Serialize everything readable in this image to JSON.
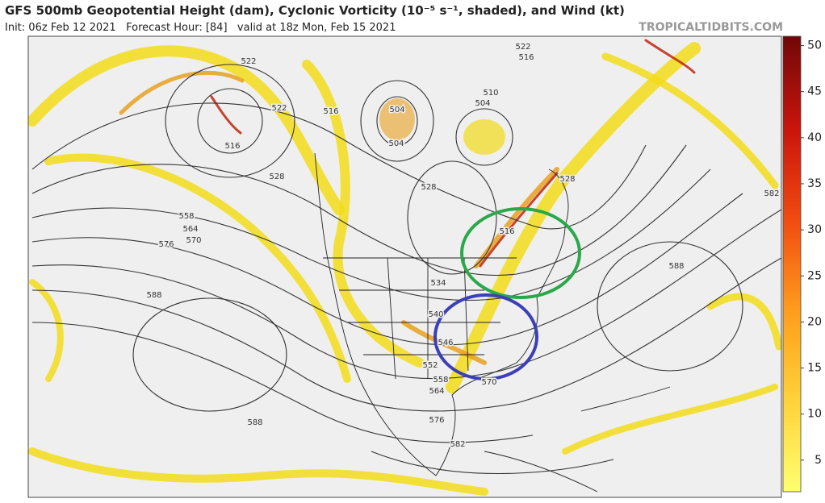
{
  "header": {
    "title": "GFS 500mb Geopotential Height (dam), Cyclonic Vorticity (10⁻⁵ s⁻¹, shaded), and Wind (kt)",
    "subtitle": "Init: 06z Feb 12 2021   Forecast Hour: [84]   valid at 18z Mon, Feb 15 2021",
    "credit": "TROPICALTIDBITS.COM"
  },
  "colorbar": {
    "ticks": [
      5,
      10,
      15,
      20,
      25,
      30,
      35,
      40,
      45,
      50
    ]
  },
  "contour_labels": [
    "522",
    "522",
    "516",
    "516",
    "504",
    "504",
    "510",
    "504",
    "522",
    "516",
    "528",
    "528",
    "558",
    "564",
    "570",
    "576",
    "588",
    "534",
    "540",
    "546",
    "552",
    "558",
    "564",
    "570",
    "576",
    "582",
    "588",
    "588",
    "582",
    "528",
    "516"
  ]
}
